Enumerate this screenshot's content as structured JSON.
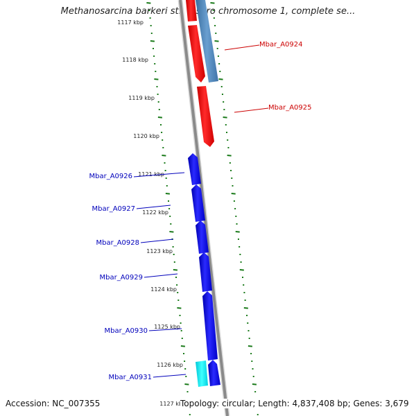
{
  "title": "Methanosarcina barkeri str. fusaro chromosome 1, complete se...",
  "footer": {
    "accession": "Accession: NC_007355",
    "stats": "Topology: circular; Length: 4,837,408 bp; Genes: 3,679"
  },
  "colors": {
    "forward_gene": "#0000ee",
    "reverse_gene": "#ee0000",
    "steelblue_gene": "#4a7fb5",
    "cyan_gene": "#00e5ee",
    "tick_green": "#1a7a1a",
    "backbone": "#8a8a8a",
    "label_blue": "#0000bb",
    "label_red": "#cc0000"
  },
  "ticks": [
    {
      "label": "1117 kbp",
      "kbp": 1117
    },
    {
      "label": "1118 kbp",
      "kbp": 1118
    },
    {
      "label": "1119 kbp",
      "kbp": 1119
    },
    {
      "label": "1120 kbp",
      "kbp": 1120
    },
    {
      "label": "1121 kbp",
      "kbp": 1121
    },
    {
      "label": "1122 kbp",
      "kbp": 1122
    },
    {
      "label": "1123 kbp",
      "kbp": 1123
    },
    {
      "label": "1124 kbp",
      "kbp": 1124
    },
    {
      "label": "1125 kbp",
      "kbp": 1125
    },
    {
      "label": "1126 kbp",
      "kbp": 1126
    },
    {
      "label": "1127 kbp",
      "kbp": 1127
    }
  ],
  "genes": [
    {
      "name": "Mbar_A0924",
      "strand": "reverse",
      "color": "red"
    },
    {
      "name": "Mbar_A0925",
      "strand": "reverse",
      "color": "red"
    },
    {
      "name": "Mbar_A0926",
      "strand": "forward",
      "color": "blue"
    },
    {
      "name": "Mbar_A0927",
      "strand": "forward",
      "color": "blue"
    },
    {
      "name": "Mbar_A0928",
      "strand": "forward",
      "color": "blue"
    },
    {
      "name": "Mbar_A0929",
      "strand": "forward",
      "color": "blue"
    },
    {
      "name": "Mbar_A0930",
      "strand": "forward",
      "color": "blue"
    },
    {
      "name": "Mbar_A0931",
      "strand": "forward",
      "color": "blue"
    }
  ]
}
